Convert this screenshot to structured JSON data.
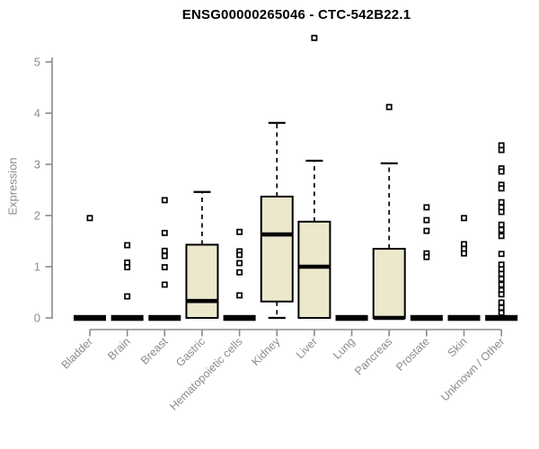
{
  "page": {
    "background": "#ffffff"
  },
  "chart_data": {
    "type": "boxplot",
    "title": "ENSG00000265046 - CTC-542B22.1",
    "ylabel": "Expression",
    "xlabel": "",
    "ylim": [
      0,
      5.5
    ],
    "yticks": [
      0,
      1,
      2,
      3,
      4,
      5
    ],
    "grid": false,
    "legend": "none",
    "colors": {
      "box_fill": "#ece8cc",
      "box_border": "#000000",
      "median": "#000000",
      "whisker": "#000000",
      "outlier_stroke": "#000000",
      "outlier_fill": "#ffffff",
      "axis": "#8b8b8b",
      "tick_label": "#8b8b8b",
      "title": "#000000"
    },
    "categories": [
      "Bladder",
      "Brain",
      "Breast",
      "Gastric",
      "Hematopoietic cells",
      "Kidney",
      "Liver",
      "Lung",
      "Pancreas",
      "Prostate",
      "Skin",
      "Unknown / Other"
    ],
    "boxes": [
      {
        "category": "Bladder",
        "q1": 0,
        "median": 0,
        "q3": 0,
        "whisker_low": 0,
        "whisker_high": 0,
        "outliers": [
          1.95
        ]
      },
      {
        "category": "Brain",
        "q1": 0,
        "median": 0,
        "q3": 0,
        "whisker_low": 0,
        "whisker_high": 0,
        "outliers": [
          1.42,
          1.08,
          0.99,
          0.42
        ]
      },
      {
        "category": "Breast",
        "q1": 0,
        "median": 0,
        "q3": 0,
        "whisker_low": 0,
        "whisker_high": 0,
        "outliers": [
          2.3,
          1.66,
          1.31,
          1.21,
          0.99,
          0.65
        ]
      },
      {
        "category": "Gastric",
        "q1": 0,
        "median": 0.33,
        "q3": 1.43,
        "whisker_low": 0,
        "whisker_high": 2.46,
        "outliers": []
      },
      {
        "category": "Hematopoietic cells",
        "q1": 0,
        "median": 0,
        "q3": 0,
        "whisker_low": 0,
        "whisker_high": 0,
        "outliers": [
          1.68,
          1.3,
          1.23,
          1.07,
          0.89,
          0.44
        ]
      },
      {
        "category": "Kidney",
        "q1": 0.32,
        "median": 1.63,
        "q3": 2.37,
        "whisker_low": 0,
        "whisker_high": 3.81,
        "outliers": []
      },
      {
        "category": "Liver",
        "q1": 0,
        "median": 1.0,
        "q3": 1.88,
        "whisker_low": 0,
        "whisker_high": 3.07,
        "outliers": [
          5.47
        ]
      },
      {
        "category": "Lung",
        "q1": 0,
        "median": 0,
        "q3": 0,
        "whisker_low": 0,
        "whisker_high": 0,
        "outliers": []
      },
      {
        "category": "Pancreas",
        "q1": 0,
        "median": 0,
        "q3": 1.35,
        "whisker_low": 0,
        "whisker_high": 3.02,
        "outliers": [
          4.12
        ]
      },
      {
        "category": "Prostate",
        "q1": 0,
        "median": 0,
        "q3": 0,
        "whisker_low": 0,
        "whisker_high": 0,
        "outliers": [
          2.16,
          1.91,
          1.7,
          1.26,
          1.19
        ]
      },
      {
        "category": "Skin",
        "q1": 0,
        "median": 0,
        "q3": 0,
        "whisker_low": 0,
        "whisker_high": 0,
        "outliers": [
          1.95,
          1.44,
          1.35,
          1.26
        ]
      },
      {
        "category": "Unknown / Other",
        "q1": 0,
        "median": 0,
        "q3": 0,
        "whisker_low": 0,
        "whisker_high": 0,
        "outliers": [
          3.37,
          3.28,
          2.92,
          2.86,
          2.6,
          2.53,
          2.26,
          2.16,
          2.07,
          1.82,
          1.72,
          1.6,
          1.25,
          1.04,
          0.95,
          0.86,
          0.76,
          0.65,
          0.54,
          0.46,
          0.3,
          0.2,
          0.1
        ]
      }
    ]
  }
}
